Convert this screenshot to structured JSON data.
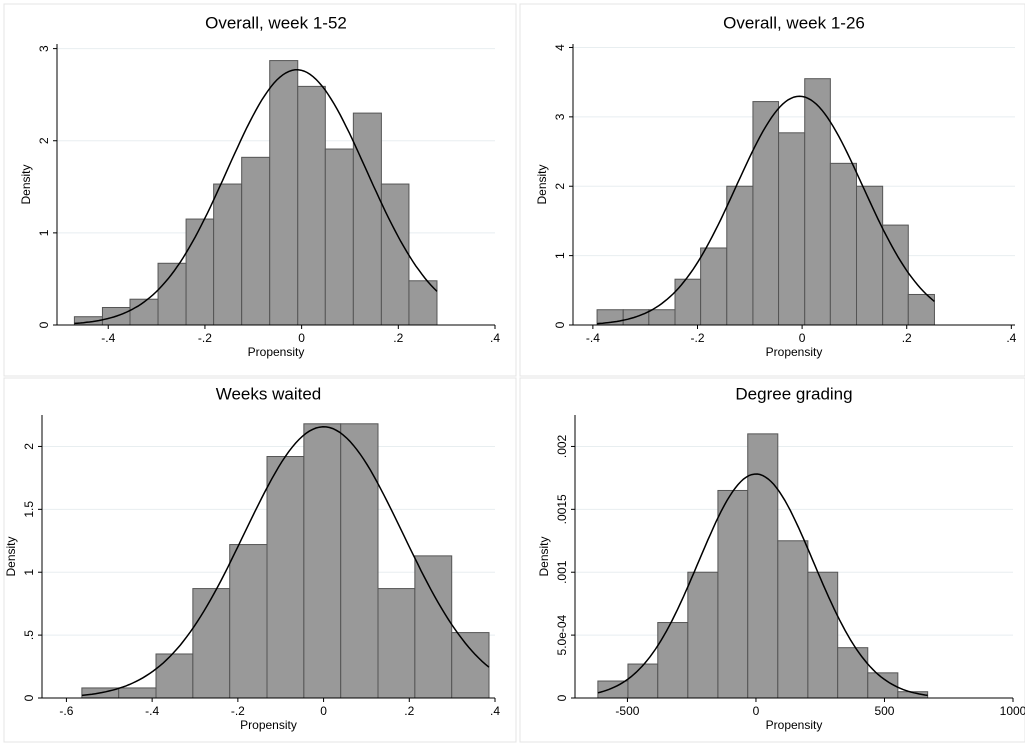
{
  "chart_data": [
    {
      "type": "histogram",
      "title": "Overall, week 1-52",
      "xlabel": "Propensity",
      "ylabel": "Density",
      "bins": [
        -0.47,
        -0.412,
        -0.355,
        -0.297,
        -0.239,
        -0.182,
        -0.124,
        -0.066,
        -0.008,
        0.049,
        0.107,
        0.165,
        0.222,
        0.28
      ],
      "values": [
        0.09,
        0.19,
        0.28,
        0.67,
        1.15,
        1.53,
        1.82,
        2.87,
        2.59,
        1.91,
        2.3,
        1.53,
        0.48
      ],
      "normal_curve": {
        "mean": -0.01,
        "sd": 0.144
      },
      "xlim": [
        -0.506,
        0.4
      ],
      "ylim": [
        0,
        3.05
      ],
      "xticks": [
        {
          "value": -0.4,
          "label": "-.4"
        },
        {
          "value": -0.2,
          "label": "-.2"
        },
        0,
        {
          "value": 0.2,
          "label": ".2"
        },
        {
          "value": 0.4,
          "label": ".4"
        }
      ],
      "yticks": [
        0,
        1,
        2,
        3
      ],
      "grid": true,
      "color": "#999999"
    },
    {
      "type": "histogram",
      "title": "Overall, week 1-26",
      "xlabel": "Propensity",
      "ylabel": "Density",
      "bins": [
        -0.392,
        -0.342,
        -0.293,
        -0.243,
        -0.194,
        -0.144,
        -0.094,
        -0.045,
        0.005,
        0.054,
        0.104,
        0.154,
        0.203,
        0.253
      ],
      "values": [
        0.22,
        0.22,
        0.22,
        0.66,
        1.11,
        2.0,
        3.22,
        2.77,
        3.55,
        2.33,
        2.0,
        1.44,
        0.44
      ],
      "normal_curve": {
        "mean": -0.005,
        "sd": 0.121
      },
      "xlim": [
        -0.438,
        0.407
      ],
      "ylim": [
        0,
        4.05
      ],
      "xticks": [
        {
          "value": -0.4,
          "label": "-.4"
        },
        {
          "value": -0.2,
          "label": "-.2"
        },
        0,
        {
          "value": 0.2,
          "label": ".2"
        },
        {
          "value": 0.4,
          "label": ".4"
        }
      ],
      "yticks": [
        0,
        1,
        2,
        3,
        4
      ],
      "grid": true,
      "color": "#999999"
    },
    {
      "type": "histogram",
      "title": "Weeks waited",
      "xlabel": "Propensity",
      "ylabel": "Density",
      "bins": [
        -0.564,
        -0.478,
        -0.391,
        -0.305,
        -0.219,
        -0.132,
        -0.046,
        0.04,
        0.127,
        0.213,
        0.299,
        0.386
      ],
      "values": [
        0.08,
        0.08,
        0.35,
        0.87,
        1.22,
        1.92,
        2.18,
        2.18,
        0.87,
        1.13,
        0.52
      ],
      "normal_curve": {
        "mean": 0.0,
        "sd": 0.185
      },
      "xlim": [
        -0.657,
        0.4
      ],
      "ylim": [
        0,
        2.25
      ],
      "xticks": [
        {
          "value": -0.6,
          "label": "-.6"
        },
        {
          "value": -0.4,
          "label": "-.4"
        },
        {
          "value": -0.2,
          "label": "-.2"
        },
        0,
        {
          "value": 0.2,
          "label": ".2"
        },
        {
          "value": 0.4,
          "label": ".4"
        }
      ],
      "yticks": [
        0,
        {
          "value": 0.5,
          "label": ".5"
        },
        1,
        1.5,
        2
      ],
      "grid": true,
      "color": "#999999"
    },
    {
      "type": "histogram",
      "title": "Degree grading",
      "xlabel": "Propensity",
      "ylabel": "Density",
      "bins": [
        -615,
        -498,
        -382,
        -265,
        -148,
        -32,
        85,
        202,
        318,
        435,
        552,
        668
      ],
      "values": [
        0.000135,
        0.00027,
        0.0006,
        0.001,
        0.00165,
        0.0021,
        0.00125,
        0.001,
        0.0004,
        0.0002,
        5e-05
      ],
      "normal_curve": {
        "mean": 0,
        "sd": 224
      },
      "xlim": [
        -704,
        1000
      ],
      "ylim": [
        0,
        0.00225
      ],
      "xticks": [
        -500,
        0,
        500,
        1000
      ],
      "yticks": [
        0,
        {
          "value": 0.0005,
          "label": "5.0e-04"
        },
        {
          "value": 0.001,
          "label": ".001"
        },
        {
          "value": 0.0015,
          "label": ".0015"
        },
        {
          "value": 0.002,
          "label": ".002"
        }
      ],
      "grid": true,
      "color": "#999999"
    }
  ]
}
